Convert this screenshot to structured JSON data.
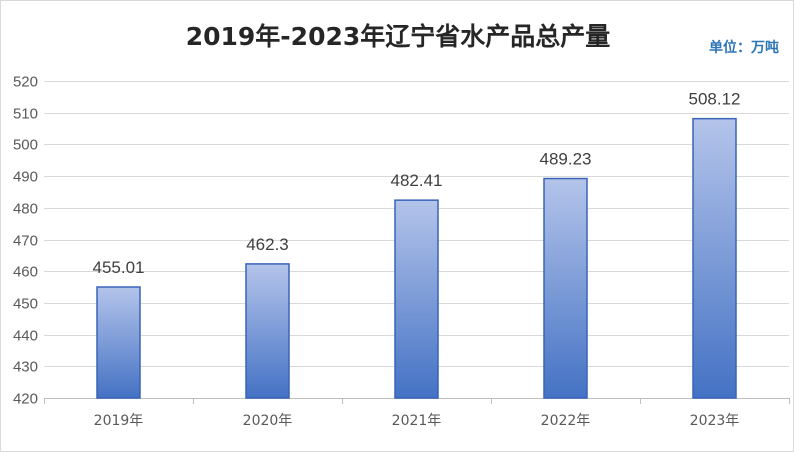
{
  "chart_data": {
    "type": "bar",
    "title": "2019年-2023年辽宁省水产品总产量",
    "unit_note": "单位：万吨",
    "categories": [
      "2019年",
      "2020年",
      "2021年",
      "2022年",
      "2023年"
    ],
    "values": [
      455.01,
      462.3,
      482.41,
      489.23,
      508.12
    ],
    "value_labels": [
      "455.01",
      "462.3",
      "482.41",
      "489.23",
      "508.12"
    ],
    "ylim": [
      420,
      520
    ],
    "yticks": [
      420,
      430,
      440,
      450,
      460,
      470,
      480,
      490,
      500,
      510,
      520
    ],
    "grid": true,
    "legend": "none",
    "colors": {
      "bar_top": "#b4c4ea",
      "bar_bottom": "#4472c4",
      "bar_border": "#3a63b8",
      "grid": "#d9d9d9",
      "unit_text": "#2e75b6"
    }
  }
}
